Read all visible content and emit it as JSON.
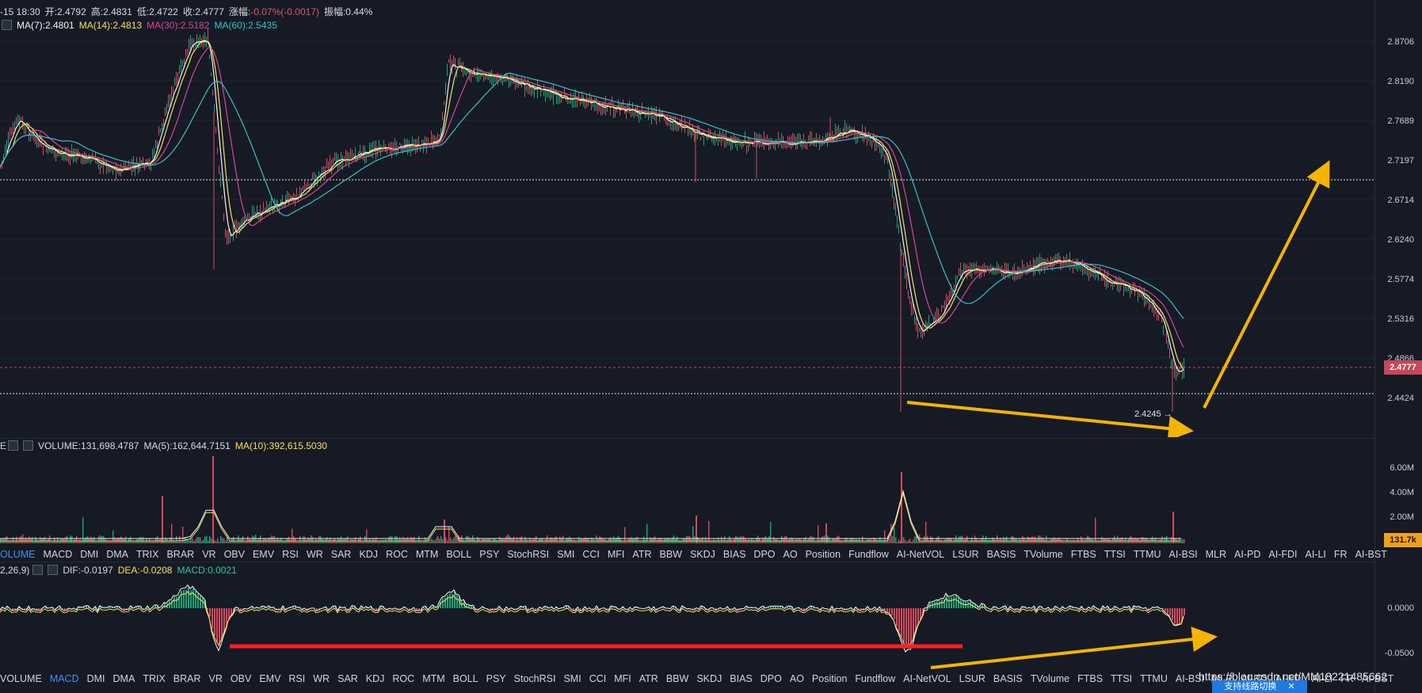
{
  "header": {
    "time": "-15 18:30",
    "open": "开:2.4792",
    "high": "高:2.4831",
    "low": "低:2.4722",
    "close": "收:2.4777",
    "change_label": "涨幅:",
    "change_value": "-0.07%(-0.0017)",
    "amplitude": "振幅:0.44%"
  },
  "ma_line": {
    "ma7": "MA(7):2.4801",
    "ma14": "MA(14):2.4813",
    "ma30": "MA(30):2.5182",
    "ma60": "MA(60):2.5435"
  },
  "price_axis": [
    "2.8706",
    "2.8190",
    "2.7689",
    "2.7197",
    "2.6714",
    "2.6240",
    "2.5774",
    "2.5316",
    "2.4866",
    "2.4424"
  ],
  "current_price": "2.4777",
  "low_marker": "2.4245 →",
  "volume_info": {
    "volume": "VOLUME:131,698.4787",
    "ma5": "MA(5):162,644.7151",
    "ma10": "MA(10):392,615.5030"
  },
  "volume_axis": [
    "6.00M",
    "4.00M",
    "2.00M"
  ],
  "current_volume": "131.7k",
  "indicator_tabs_1": [
    "OLUME",
    "MACD",
    "DMI",
    "DMA",
    "TRIX",
    "BRAR",
    "VR",
    "OBV",
    "EMV",
    "RSI",
    "WR",
    "SAR",
    "KDJ",
    "ROC",
    "MTM",
    "BOLL",
    "PSY",
    "StochRSI",
    "SMI",
    "CCI",
    "MFI",
    "ATR",
    "BBW",
    "SKDJ",
    "BIAS",
    "DPO",
    "AO",
    "Position",
    "Fundflow",
    "AI-NetVOL",
    "LSUR",
    "BASIS",
    "TVolume",
    "FTBS",
    "TTSI",
    "TTMU",
    "AI-BSI",
    "MLR",
    "AI-PD",
    "AI-FDI",
    "AI-LI",
    "FR",
    "AI-BST"
  ],
  "macd_info": {
    "params": "2,26,9)",
    "dif": "DIF:-0.0197",
    "dea": "DEA:-0.0208",
    "macd": "MACD:0.0021"
  },
  "macd_axis": [
    "0.0000",
    "-0.0500"
  ],
  "indicator_tabs_2": [
    "VOLUME",
    "MACD",
    "DMI",
    "DMA",
    "TRIX",
    "BRAR",
    "VR",
    "OBV",
    "EMV",
    "RSI",
    "WR",
    "SAR",
    "KDJ",
    "ROC",
    "MTM",
    "BOLL",
    "PSY",
    "StochRSI",
    "SMI",
    "CCI",
    "MFI",
    "ATR",
    "BBW",
    "SKDJ",
    "BIAS",
    "DPO",
    "AO",
    "Position",
    "Fundflow",
    "AI-NetVOL",
    "LSUR",
    "BASIS",
    "TVolume",
    "FTBS",
    "TTSI",
    "TTMU",
    "AI-BSI",
    "MLR",
    "AI-PD",
    "AI-FDI",
    "AI-LI",
    "FR",
    "AI-BST"
  ],
  "watermark": "https://blog.csdn.net/MM18221485662",
  "switch_button": "支持线路切换",
  "colors": {
    "bg": "#161a25",
    "up": "#1fa37a",
    "down": "#d64a5d",
    "ma7": "#f2f2f2",
    "ma14": "#f5e05a",
    "ma30": "#d9449a",
    "ma60": "#3ac0c4",
    "arrow": "#f5b400",
    "red_line": "#ff1f1f"
  }
}
